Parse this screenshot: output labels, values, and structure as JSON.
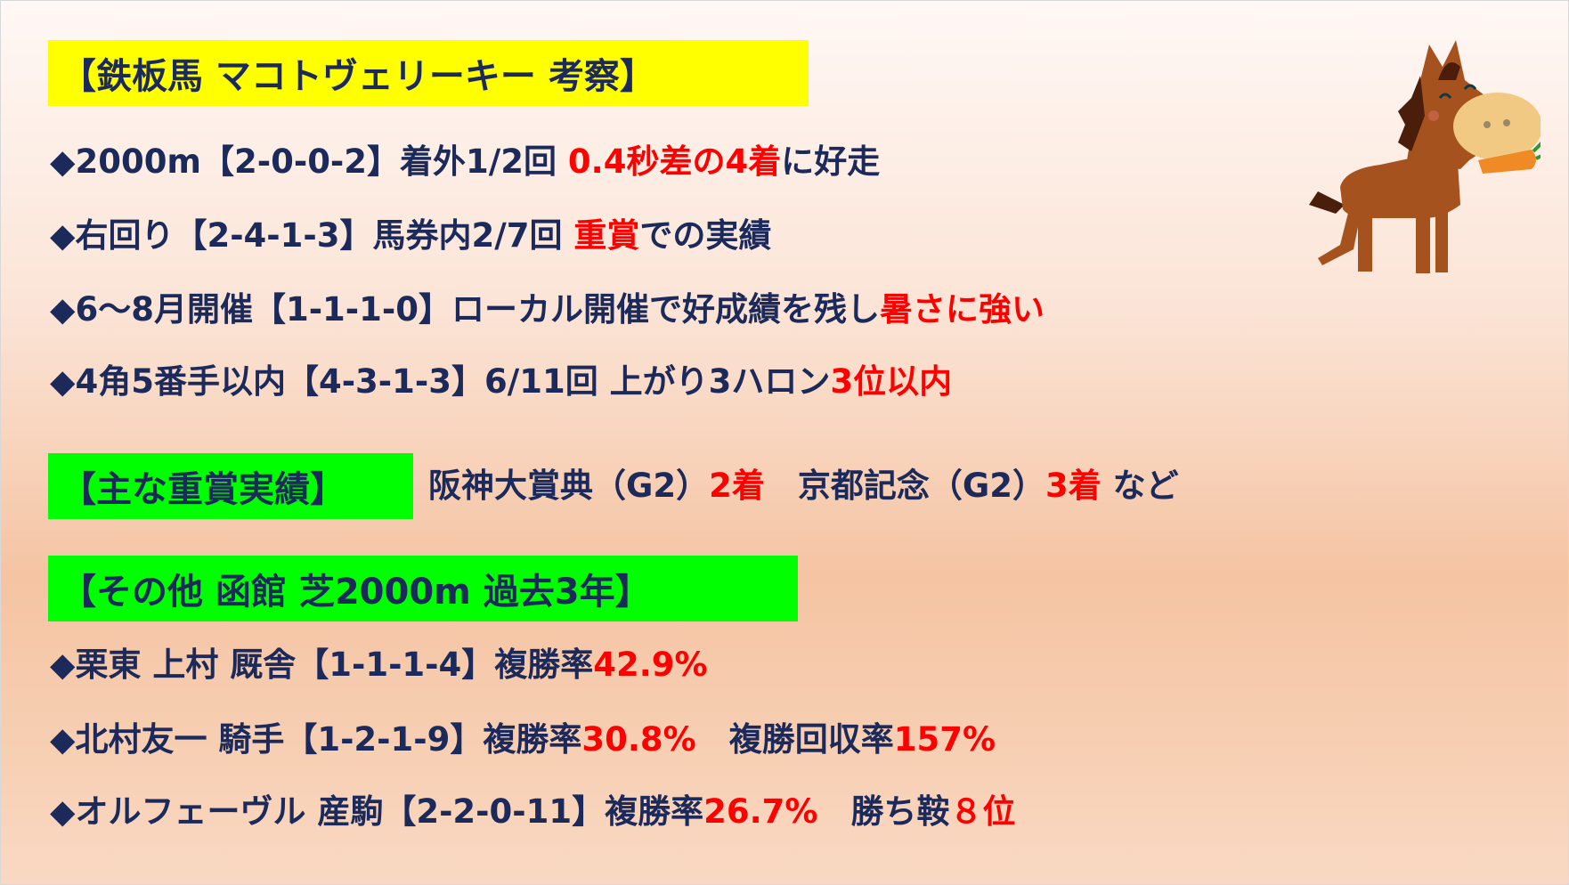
{
  "title": "【鉄板馬 マコトヴェリーキー 考察】",
  "lines": [
    {
      "a": "◆2000m【2-0-0-2】着外1/2回 ",
      "b": "0.4秒差の4着",
      "c": "に好走"
    },
    {
      "a": "◆右回り【2-4-1-3】馬券内2/7回 ",
      "b": "重賞",
      "c": "での実績"
    },
    {
      "a": "◆6〜8月開催【1-1-1-0】ローカル開催で好成績を残し",
      "b": "暑さに強い",
      "c": ""
    },
    {
      "a": "◆4角5番手以内【4-3-1-3】6/11回 上がり3ハロン",
      "b": "3位以内",
      "c": ""
    }
  ],
  "grade": {
    "label": "【主な重賞実績】",
    "r1": "阪神大賞典（G2）",
    "r1_place": "2着",
    "r2": "京都記念（G2）",
    "r2_place": "3着",
    "suffix": " など"
  },
  "other": {
    "label": "【その他 函館 芝2000m 過去3年】",
    "lines": [
      {
        "a": "◆栗東 上村 厩舎【1-1-1-4】複勝率",
        "b": "42.9%",
        "c": "",
        "d": ""
      },
      {
        "a": "◆北村友一 騎手【1-2-1-9】複勝率",
        "b": "30.8%",
        "c": "　複勝回収率",
        "d": "157%"
      },
      {
        "a": "◆オルフェーヴル 産駒【2-2-0-11】複勝率",
        "b": "26.7%",
        "c": "　勝ち鞍",
        "d": "８位"
      }
    ]
  },
  "colors": {
    "navy": "#1b2a5a",
    "red": "#ff0000",
    "yellow": "#ffff00",
    "green": "#00ff00"
  },
  "illustration": "horse-eating-carrot"
}
